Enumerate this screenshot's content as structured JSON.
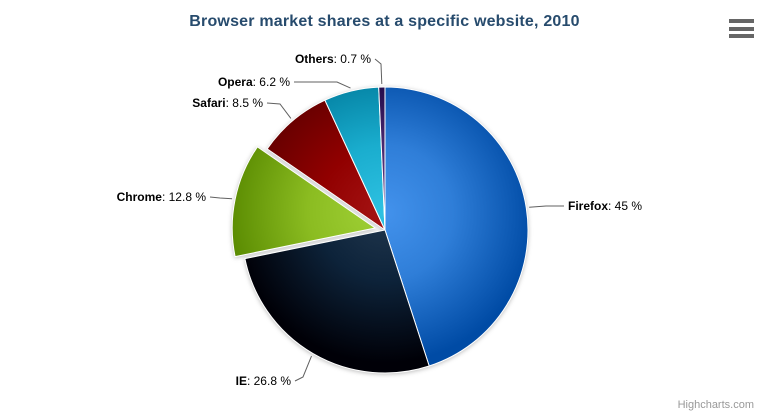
{
  "credits": "Highcharts.com",
  "colors": {
    "background": "#ffffff",
    "title_text": "#274b6d",
    "label_text": "#000000",
    "connector_line": "#606060",
    "slice_border": "#ffffff",
    "credits_text": "#999999",
    "menu_icon": "#666666"
  },
  "menu": {
    "icon": "hamburger-icon"
  },
  "chart_data": {
    "type": "pie",
    "title": "Browser market shares at a specific website, 2010",
    "legend": "none",
    "grid": "off",
    "start_angle_deg": 0,
    "direction": "clockwise",
    "label_format": "{name}: {value} %",
    "points": [
      {
        "name": "Firefox",
        "value": 45,
        "label_value": "45 %",
        "color": "#2f7ed8",
        "sliced": false
      },
      {
        "name": "IE",
        "value": 26.8,
        "label_value": "26.8 %",
        "color": "#0d233a",
        "sliced": false
      },
      {
        "name": "Chrome",
        "value": 12.8,
        "label_value": "12.8 %",
        "color": "#8bbc21",
        "sliced": true
      },
      {
        "name": "Safari",
        "value": 8.5,
        "label_value": "8.5 %",
        "color": "#910000",
        "sliced": false
      },
      {
        "name": "Opera",
        "value": 6.2,
        "label_value": "6.2 %",
        "color": "#1aadce",
        "sliced": false
      },
      {
        "name": "Others",
        "value": 0.7,
        "label_value": "0.7 %",
        "color": "#492970",
        "sliced": false
      }
    ]
  }
}
